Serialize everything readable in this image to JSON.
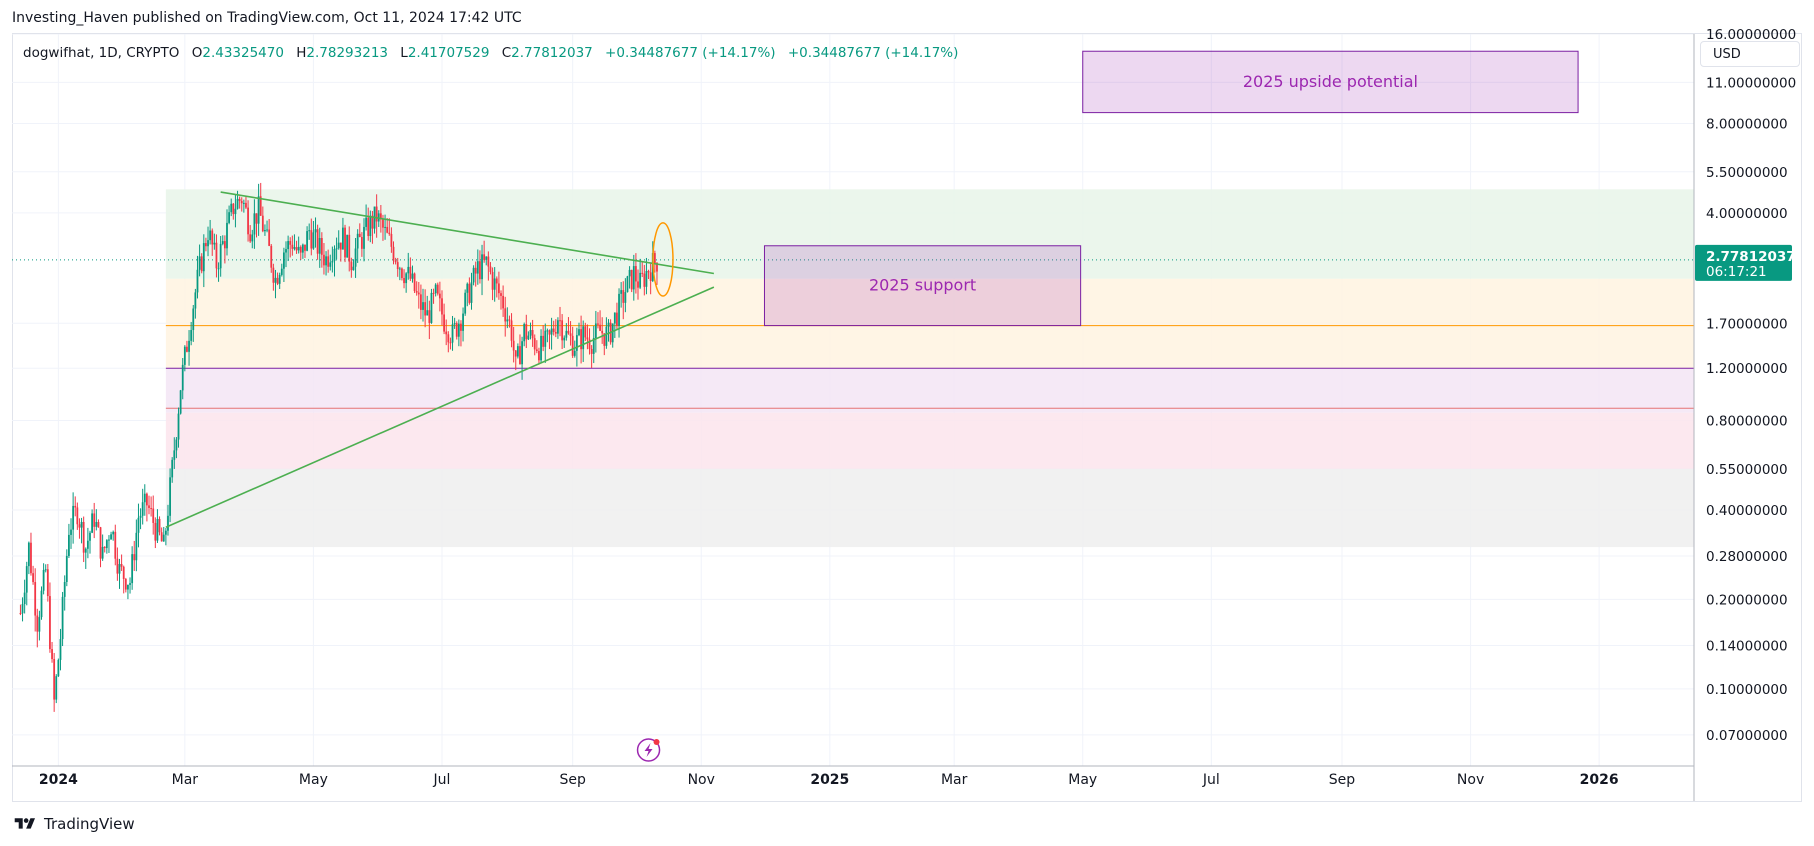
{
  "header": {
    "publish_line": "Investing_Haven published on TradingView.com, Oct 11, 2024 17:42 UTC"
  },
  "legend": {
    "symbol": "dogwifhat, 1D, CRYPTO",
    "open_label": "O",
    "open_value": "2.43325470",
    "high_label": "H",
    "high_value": "2.78293213",
    "low_label": "L",
    "low_value": "2.41707529",
    "close_label": "C",
    "close_value": "2.77812037",
    "change_1": "+0.34487677 (+14.17%)",
    "change_2": "+0.34487677 (+14.17%)"
  },
  "currency_button": "USD",
  "footer": {
    "brand": "TradingView"
  },
  "colors": {
    "up": "#089981",
    "down": "#f23645",
    "trend": "#4caf50",
    "purple": "#9c27b0",
    "orange": "#ff9800",
    "price_label": "#089981"
  },
  "chart_data": {
    "type": "candlestick",
    "symbol": "dogwifhat",
    "timeframe": "1D",
    "y_scale": "log",
    "ylim": [
      0.055,
      16.0
    ],
    "x_range": [
      "2023-12-10",
      "2026-02-15"
    ],
    "y_ticks": [
      "0.07000000",
      "0.10000000",
      "0.14000000",
      "0.20000000",
      "0.28000000",
      "0.40000000",
      "0.55000000",
      "0.80000000",
      "1.20000000",
      "1.70000000",
      "2.77812037",
      "4.00000000",
      "5.50000000",
      "8.00000000",
      "11.00000000",
      "16.00000000"
    ],
    "y_tick_values": [
      0.07,
      0.1,
      0.14,
      0.2,
      0.28,
      0.4,
      0.55,
      0.8,
      1.2,
      1.7,
      2.77812037,
      4.0,
      5.5,
      8.0,
      11.0,
      16.0
    ],
    "x_ticks": [
      {
        "label": "2024",
        "date": "2024-01-01",
        "bold": true
      },
      {
        "label": "Mar",
        "date": "2024-03-01"
      },
      {
        "label": "May",
        "date": "2024-05-01"
      },
      {
        "label": "Jul",
        "date": "2024-07-01"
      },
      {
        "label": "Sep",
        "date": "2024-09-01"
      },
      {
        "label": "Nov",
        "date": "2024-11-01"
      },
      {
        "label": "2025",
        "date": "2025-01-01",
        "bold": true
      },
      {
        "label": "Mar",
        "date": "2025-03-01"
      },
      {
        "label": "May",
        "date": "2025-05-01"
      },
      {
        "label": "Jul",
        "date": "2025-07-01"
      },
      {
        "label": "Sep",
        "date": "2025-09-01"
      },
      {
        "label": "Nov",
        "date": "2025-11-01"
      },
      {
        "label": "2026",
        "date": "2026-01-01",
        "bold": true
      }
    ],
    "last_price": {
      "value": 2.77812037,
      "label": "2.77812037",
      "countdown": "06:17:21"
    },
    "price_path": [
      [
        "2023-12-14",
        0.18
      ],
      [
        "2023-12-18",
        0.3
      ],
      [
        "2023-12-22",
        0.17
      ],
      [
        "2023-12-26",
        0.25
      ],
      [
        "2023-12-30",
        0.09
      ],
      [
        "2024-01-02",
        0.15
      ],
      [
        "2024-01-06",
        0.35
      ],
      [
        "2024-01-10",
        0.4
      ],
      [
        "2024-01-14",
        0.3
      ],
      [
        "2024-01-18",
        0.38
      ],
      [
        "2024-01-22",
        0.28
      ],
      [
        "2024-01-26",
        0.36
      ],
      [
        "2024-01-30",
        0.25
      ],
      [
        "2024-02-04",
        0.23
      ],
      [
        "2024-02-08",
        0.38
      ],
      [
        "2024-02-12",
        0.42
      ],
      [
        "2024-02-16",
        0.35
      ],
      [
        "2024-02-20",
        0.3
      ],
      [
        "2024-02-24",
        0.55
      ],
      [
        "2024-02-28",
        1.05
      ],
      [
        "2024-03-04",
        1.8
      ],
      [
        "2024-03-08",
        2.6
      ],
      [
        "2024-03-12",
        3.5
      ],
      [
        "2024-03-16",
        2.7
      ],
      [
        "2024-03-20",
        3.3
      ],
      [
        "2024-03-24",
        4.2
      ],
      [
        "2024-03-28",
        4.5
      ],
      [
        "2024-04-01",
        3.6
      ],
      [
        "2024-04-05",
        4.1
      ],
      [
        "2024-04-09",
        3.2
      ],
      [
        "2024-04-13",
        2.4
      ],
      [
        "2024-04-17",
        3.0
      ],
      [
        "2024-04-21",
        3.2
      ],
      [
        "2024-04-25",
        2.8
      ],
      [
        "2024-04-29",
        3.5
      ],
      [
        "2024-05-03",
        3.1
      ],
      [
        "2024-05-07",
        2.8
      ],
      [
        "2024-05-11",
        3.2
      ],
      [
        "2024-05-15",
        3.3
      ],
      [
        "2024-05-19",
        2.8
      ],
      [
        "2024-05-23",
        3.2
      ],
      [
        "2024-05-27",
        3.6
      ],
      [
        "2024-05-31",
        3.9
      ],
      [
        "2024-06-04",
        3.4
      ],
      [
        "2024-06-08",
        3.0
      ],
      [
        "2024-06-12",
        2.6
      ],
      [
        "2024-06-16",
        2.4
      ],
      [
        "2024-06-20",
        2.0
      ],
      [
        "2024-06-24",
        1.8
      ],
      [
        "2024-06-28",
        2.1
      ],
      [
        "2024-07-02",
        1.75
      ],
      [
        "2024-07-06",
        1.55
      ],
      [
        "2024-07-10",
        1.8
      ],
      [
        "2024-07-14",
        2.2
      ],
      [
        "2024-07-18",
        2.6
      ],
      [
        "2024-07-22",
        2.7
      ],
      [
        "2024-07-26",
        2.3
      ],
      [
        "2024-07-30",
        2.0
      ],
      [
        "2024-08-03",
        1.6
      ],
      [
        "2024-08-05",
        1.2
      ],
      [
        "2024-08-09",
        1.6
      ],
      [
        "2024-08-13",
        1.5
      ],
      [
        "2024-08-17",
        1.4
      ],
      [
        "2024-08-21",
        1.5
      ],
      [
        "2024-08-25",
        1.8
      ],
      [
        "2024-08-29",
        1.55
      ],
      [
        "2024-09-02",
        1.45
      ],
      [
        "2024-09-06",
        1.55
      ],
      [
        "2024-09-10",
        1.5
      ],
      [
        "2024-09-14",
        1.6
      ],
      [
        "2024-09-18",
        1.55
      ],
      [
        "2024-09-22",
        1.85
      ],
      [
        "2024-09-26",
        2.2
      ],
      [
        "2024-09-30",
        2.5
      ],
      [
        "2024-10-03",
        2.3
      ],
      [
        "2024-10-07",
        2.6
      ],
      [
        "2024-10-11",
        2.78
      ]
    ],
    "trendlines": [
      {
        "name": "upper",
        "start": [
          "2024-03-18",
          4.7
        ],
        "end": [
          "2024-11-07",
          2.5
        ],
        "color": "#4caf50"
      },
      {
        "name": "lower",
        "start": [
          "2024-02-21",
          0.35
        ],
        "end": [
          "2024-11-07",
          2.25
        ],
        "color": "#4caf50"
      }
    ],
    "zones": [
      {
        "from": "2024-02-21",
        "low": 2.4,
        "high": 4.8,
        "color": "#e8f5e9"
      },
      {
        "from": "2024-02-21",
        "low": 1.2,
        "high": 2.4,
        "color": "#fff3e0"
      },
      {
        "from": "2024-02-21",
        "low": 0.85,
        "high": 1.2,
        "color": "#f3e5f5"
      },
      {
        "from": "2024-02-21",
        "low": 0.55,
        "high": 0.85,
        "color": "#fce4ec"
      },
      {
        "from": "2024-02-21",
        "low": 0.3,
        "high": 0.55,
        "color": "#eeeeee"
      }
    ],
    "horizontal_lines": [
      {
        "value": 1.67,
        "from": "2024-02-21",
        "color": "#ff9800"
      },
      {
        "value": 1.2,
        "from": "2024-02-21",
        "color": "#7b1fa2"
      },
      {
        "value": 0.88,
        "from": "2024-02-21",
        "color": "#e57373"
      }
    ],
    "annotations": [
      {
        "label": "2025 upside potential",
        "from": "2025-05-01",
        "to": "2025-12-22",
        "low": 8.7,
        "high": 14.0
      },
      {
        "label": "2025 support",
        "from": "2024-12-01",
        "to": "2025-04-30",
        "low": 1.67,
        "high": 3.1
      }
    ],
    "highlight_ellipse": {
      "date": "2024-10-11",
      "low": 2.1,
      "high": 3.7,
      "color": "#ff9800"
    },
    "grid": true,
    "legend_position": "top-left"
  }
}
